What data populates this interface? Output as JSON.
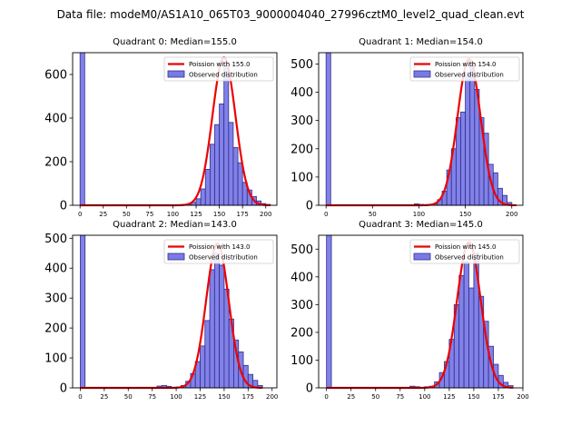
{
  "figure": {
    "suptitle": "Data file: modeM0/AS1A10_065T03_9000004040_27996cztM0_level2_quad_clean.evt"
  },
  "style": {
    "hist_fill": "#7a7ae6",
    "hist_edge": "#2f2f8f",
    "poisson_line": "#ee0000"
  },
  "chart_data": [
    {
      "type": "bar",
      "title": "Quadrant 0: Median=155.0",
      "median": 155.0,
      "legend": {
        "line_label": "Poission with 155.0",
        "hist_label": "Observed distribution",
        "placement": "top-right"
      },
      "xlim": [
        -8,
        212
      ],
      "ylim": [
        0,
        700
      ],
      "xticks": [
        0,
        25,
        50,
        75,
        100,
        125,
        150,
        175,
        200
      ],
      "yticks": [
        0,
        200,
        400,
        600
      ],
      "bin_width": 5,
      "bins": [
        {
          "x": 0,
          "y": 700
        },
        {
          "x": 105,
          "y": 2
        },
        {
          "x": 110,
          "y": 4
        },
        {
          "x": 115,
          "y": 6
        },
        {
          "x": 120,
          "y": 14
        },
        {
          "x": 125,
          "y": 30
        },
        {
          "x": 130,
          "y": 75
        },
        {
          "x": 135,
          "y": 165
        },
        {
          "x": 140,
          "y": 280
        },
        {
          "x": 145,
          "y": 370
        },
        {
          "x": 150,
          "y": 465
        },
        {
          "x": 155,
          "y": 640
        },
        {
          "x": 160,
          "y": 380
        },
        {
          "x": 165,
          "y": 265
        },
        {
          "x": 170,
          "y": 195
        },
        {
          "x": 175,
          "y": 105
        },
        {
          "x": 180,
          "y": 70
        },
        {
          "x": 185,
          "y": 40
        },
        {
          "x": 190,
          "y": 20
        },
        {
          "x": 195,
          "y": 8
        },
        {
          "x": 200,
          "y": 4
        }
      ],
      "curve": {
        "peak": 678,
        "sigma": 12.4,
        "x_range": [
          0,
          205
        ]
      }
    },
    {
      "type": "bar",
      "title": "Quadrant 1: Median=154.0",
      "median": 154.0,
      "legend": {
        "line_label": "Poission with 154.0",
        "hist_label": "Observed distribution",
        "placement": "top-right"
      },
      "xlim": [
        -8,
        212
      ],
      "ylim": [
        0,
        540
      ],
      "xticks": [
        0,
        50,
        100,
        150,
        200
      ],
      "yticks": [
        0,
        100,
        200,
        300,
        400,
        500
      ],
      "bin_width": 5,
      "bins": [
        {
          "x": 0,
          "y": 540
        },
        {
          "x": 95,
          "y": 5
        },
        {
          "x": 100,
          "y": 3
        },
        {
          "x": 115,
          "y": 5
        },
        {
          "x": 120,
          "y": 20
        },
        {
          "x": 125,
          "y": 50
        },
        {
          "x": 130,
          "y": 125
        },
        {
          "x": 135,
          "y": 200
        },
        {
          "x": 140,
          "y": 310
        },
        {
          "x": 145,
          "y": 330
        },
        {
          "x": 150,
          "y": 470
        },
        {
          "x": 155,
          "y": 505
        },
        {
          "x": 160,
          "y": 410
        },
        {
          "x": 165,
          "y": 310
        },
        {
          "x": 170,
          "y": 255
        },
        {
          "x": 175,
          "y": 145
        },
        {
          "x": 180,
          "y": 115
        },
        {
          "x": 185,
          "y": 60
        },
        {
          "x": 190,
          "y": 35
        },
        {
          "x": 195,
          "y": 10
        }
      ],
      "curve": {
        "peak": 518,
        "sigma": 12.4,
        "x_range": [
          0,
          205
        ]
      }
    },
    {
      "type": "bar",
      "title": "Quadrant 2: Median=143.0",
      "median": 143.0,
      "legend": {
        "line_label": "Poission with 143.0",
        "hist_label": "Observed distribution",
        "placement": "top-right"
      },
      "xlim": [
        -8,
        205
      ],
      "ylim": [
        0,
        510
      ],
      "xticks": [
        0,
        25,
        50,
        75,
        100,
        125,
        150,
        175,
        200
      ],
      "yticks": [
        0,
        100,
        200,
        300,
        400,
        500
      ],
      "bin_width": 5,
      "bins": [
        {
          "x": 0,
          "y": 510
        },
        {
          "x": 80,
          "y": 6
        },
        {
          "x": 85,
          "y": 8
        },
        {
          "x": 90,
          "y": 5
        },
        {
          "x": 100,
          "y": 3
        },
        {
          "x": 105,
          "y": 8
        },
        {
          "x": 110,
          "y": 22
        },
        {
          "x": 115,
          "y": 48
        },
        {
          "x": 120,
          "y": 88
        },
        {
          "x": 125,
          "y": 140
        },
        {
          "x": 130,
          "y": 225
        },
        {
          "x": 135,
          "y": 395
        },
        {
          "x": 140,
          "y": 450
        },
        {
          "x": 145,
          "y": 410
        },
        {
          "x": 150,
          "y": 330
        },
        {
          "x": 155,
          "y": 230
        },
        {
          "x": 160,
          "y": 160
        },
        {
          "x": 165,
          "y": 120
        },
        {
          "x": 170,
          "y": 75
        },
        {
          "x": 175,
          "y": 45
        },
        {
          "x": 180,
          "y": 25
        },
        {
          "x": 185,
          "y": 8
        }
      ],
      "curve": {
        "peak": 482,
        "sigma": 11.8,
        "x_range": [
          0,
          190
        ]
      }
    },
    {
      "type": "bar",
      "title": "Quadrant 3: Median=145.0",
      "median": 145.0,
      "legend": {
        "line_label": "Poission with 145.0",
        "hist_label": "Observed distribution",
        "placement": "top-right"
      },
      "xlim": [
        -8,
        200
      ],
      "ylim": [
        0,
        550
      ],
      "xticks": [
        0,
        25,
        50,
        75,
        100,
        125,
        150,
        175,
        200
      ],
      "yticks": [
        0,
        100,
        200,
        300,
        400,
        500
      ],
      "bin_width": 5,
      "bins": [
        {
          "x": 0,
          "y": 550
        },
        {
          "x": 85,
          "y": 6
        },
        {
          "x": 90,
          "y": 4
        },
        {
          "x": 100,
          "y": 4
        },
        {
          "x": 105,
          "y": 6
        },
        {
          "x": 110,
          "y": 22
        },
        {
          "x": 115,
          "y": 55
        },
        {
          "x": 120,
          "y": 95
        },
        {
          "x": 125,
          "y": 175
        },
        {
          "x": 130,
          "y": 300
        },
        {
          "x": 135,
          "y": 405
        },
        {
          "x": 140,
          "y": 455
        },
        {
          "x": 145,
          "y": 360
        },
        {
          "x": 150,
          "y": 485
        },
        {
          "x": 155,
          "y": 330
        },
        {
          "x": 160,
          "y": 240
        },
        {
          "x": 165,
          "y": 150
        },
        {
          "x": 170,
          "y": 85
        },
        {
          "x": 175,
          "y": 45
        },
        {
          "x": 180,
          "y": 20
        },
        {
          "x": 185,
          "y": 8
        }
      ],
      "curve": {
        "peak": 525,
        "sigma": 12.0,
        "x_range": [
          0,
          190
        ]
      }
    }
  ]
}
